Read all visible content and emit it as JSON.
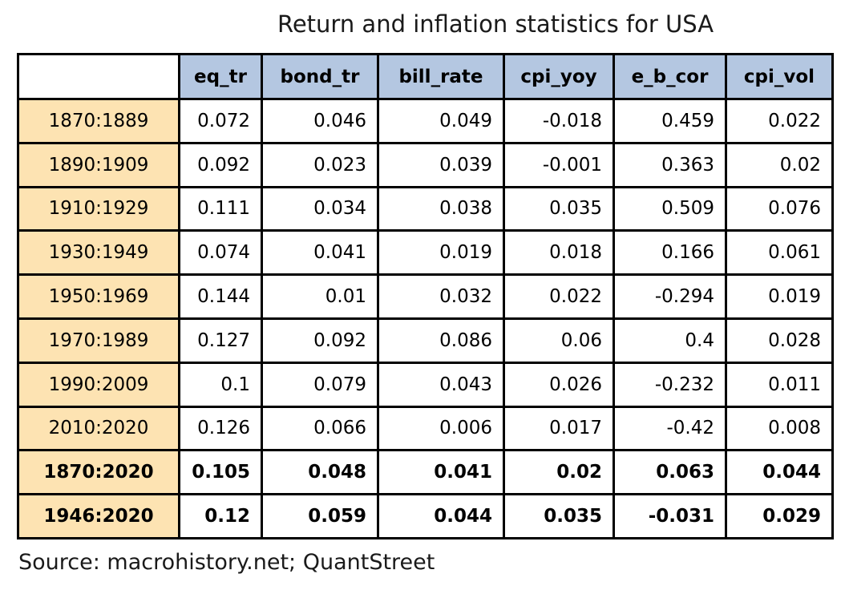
{
  "title": "Return and inflation statistics for USA",
  "source_note": "Source: macrohistory.net; QuantStreet",
  "colors": {
    "header_bg": "#b4c7e1",
    "row_label_bg": "#fde3b2",
    "border": "#000000",
    "page_bg": "#ffffff"
  },
  "chart_data": {
    "type": "table",
    "title": "Return and inflation statistics for USA",
    "columns": [
      "eq_tr",
      "bond_tr",
      "bill_rate",
      "cpi_yoy",
      "e_b_cor",
      "cpi_vol"
    ],
    "rows": [
      {
        "label": "1870:1889",
        "bold": false,
        "values": [
          "0.072",
          "0.046",
          "0.049",
          "-0.018",
          "0.459",
          "0.022"
        ]
      },
      {
        "label": "1890:1909",
        "bold": false,
        "values": [
          "0.092",
          "0.023",
          "0.039",
          "-0.001",
          "0.363",
          "0.02"
        ]
      },
      {
        "label": "1910:1929",
        "bold": false,
        "values": [
          "0.111",
          "0.034",
          "0.038",
          "0.035",
          "0.509",
          "0.076"
        ]
      },
      {
        "label": "1930:1949",
        "bold": false,
        "values": [
          "0.074",
          "0.041",
          "0.019",
          "0.018",
          "0.166",
          "0.061"
        ]
      },
      {
        "label": "1950:1969",
        "bold": false,
        "values": [
          "0.144",
          "0.01",
          "0.032",
          "0.022",
          "-0.294",
          "0.019"
        ]
      },
      {
        "label": "1970:1989",
        "bold": false,
        "values": [
          "0.127",
          "0.092",
          "0.086",
          "0.06",
          "0.4",
          "0.028"
        ]
      },
      {
        "label": "1990:2009",
        "bold": false,
        "values": [
          "0.1",
          "0.079",
          "0.043",
          "0.026",
          "-0.232",
          "0.011"
        ]
      },
      {
        "label": "2010:2020",
        "bold": false,
        "values": [
          "0.126",
          "0.066",
          "0.006",
          "0.017",
          "-0.42",
          "0.008"
        ]
      },
      {
        "label": "1870:2020",
        "bold": true,
        "values": [
          "0.105",
          "0.048",
          "0.041",
          "0.02",
          "0.063",
          "0.044"
        ]
      },
      {
        "label": "1946:2020",
        "bold": true,
        "values": [
          "0.12",
          "0.059",
          "0.044",
          "0.035",
          "-0.031",
          "0.029"
        ]
      }
    ]
  }
}
